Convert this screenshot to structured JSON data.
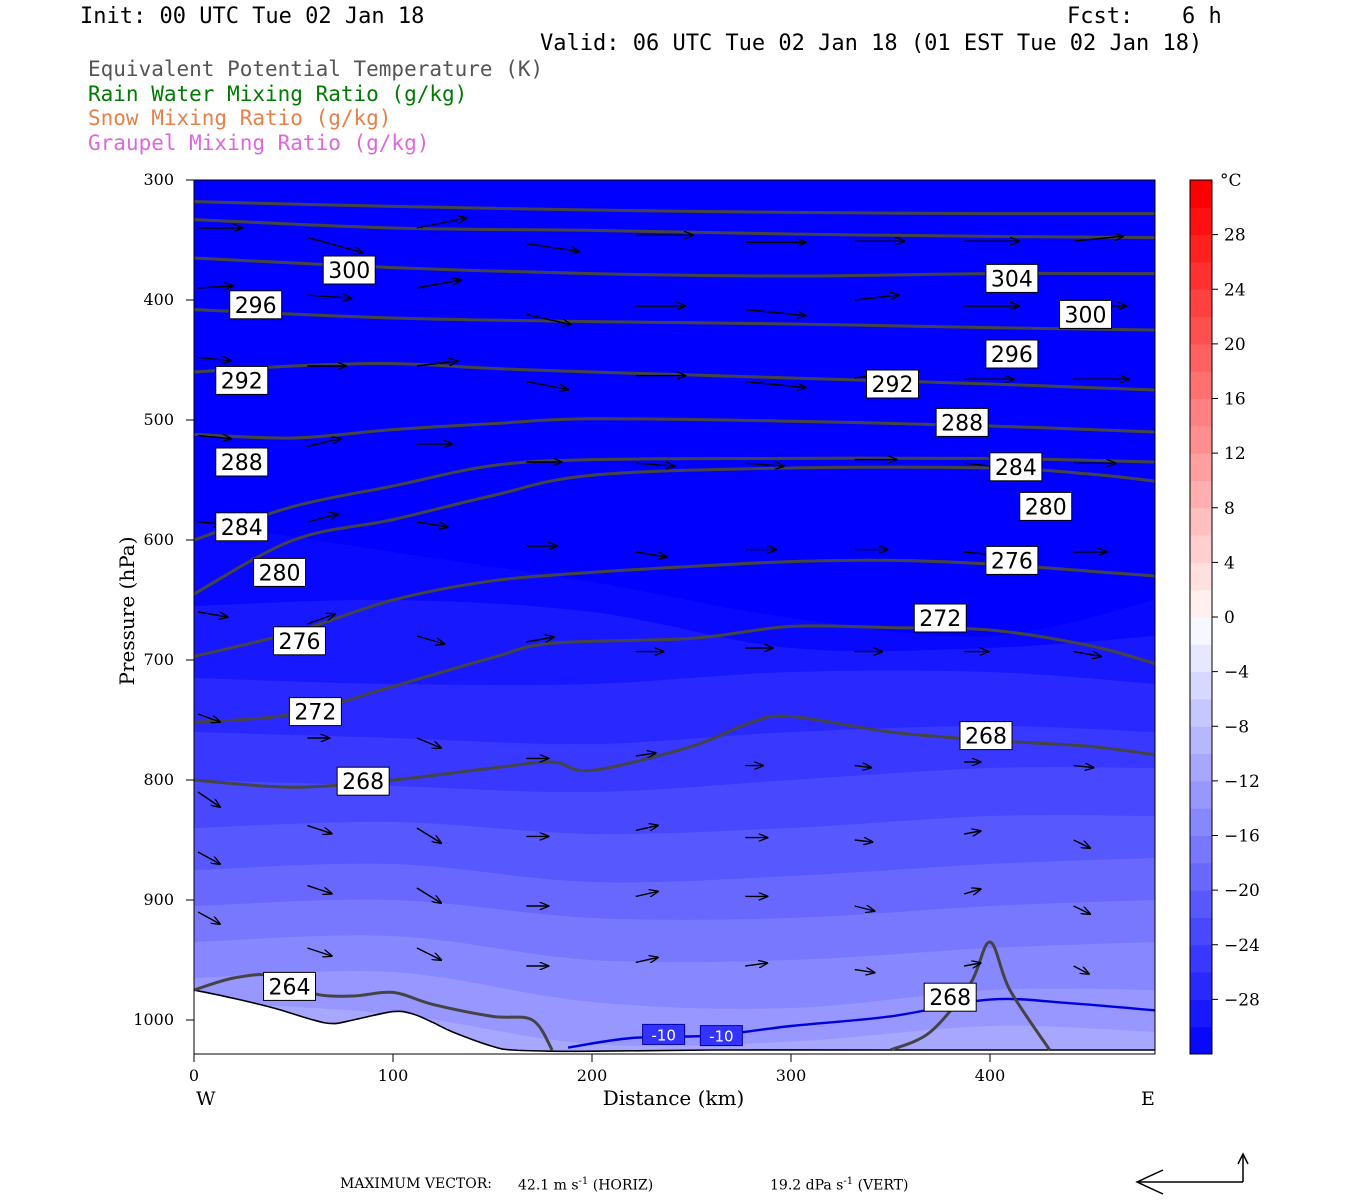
{
  "header": {
    "init": "Init: 00 UTC Tue 02 Jan 18",
    "fcst_label": "Fcst:",
    "fcst_value": "6 h",
    "valid": "Valid: 06 UTC Tue 02 Jan 18 (01 EST Tue 02 Jan 18)"
  },
  "legend": {
    "items": [
      {
        "label": "Equivalent Potential Temperature (K)",
        "color": "#555555"
      },
      {
        "label": "Rain Water Mixing Ratio (g/kg)",
        "color": "#007a00"
      },
      {
        "label": "Snow Mixing Ratio (g/kg)",
        "color": "#e8804a"
      },
      {
        "label": "Graupel Mixing Ratio (g/kg)",
        "color": "#e066e0"
      }
    ]
  },
  "footer": {
    "max_vector_label": "MAXIMUM VECTOR:",
    "horiz_value": "42.1",
    "horiz_unit": "m s",
    "horiz_exp": "-1",
    "horiz_tag": "(HORIZ)",
    "vert_value": "19.2",
    "vert_unit": "dPa s",
    "vert_exp": "-1",
    "vert_tag": "(VERT)"
  },
  "chart_data": {
    "type": "cross-section contour",
    "xlabel": "Distance (km)",
    "ylabel": "Pressure (hPa)",
    "xlim": [
      0,
      483
    ],
    "ylim": [
      1030,
      300
    ],
    "x_ticks": [
      0,
      100,
      200,
      300,
      400
    ],
    "y_ticks": [
      300,
      400,
      500,
      600,
      700,
      800,
      900,
      1000
    ],
    "x_end_labels": {
      "left": "W",
      "right": "E"
    },
    "colorbar": {
      "unit": "°C",
      "levels": [
        -32,
        -30,
        -28,
        -26,
        -24,
        -22,
        -20,
        -18,
        -16,
        -14,
        -12,
        -10,
        -8,
        -6,
        -4,
        -2,
        0,
        2,
        4,
        6,
        8,
        10,
        12,
        14,
        16,
        18,
        20,
        22,
        24,
        26,
        28,
        30,
        32
      ],
      "tick_labels": [
        28,
        24,
        20,
        16,
        12,
        8,
        4,
        0,
        -4,
        -8,
        -12,
        -16,
        -20,
        -24,
        -28
      ]
    },
    "temperature_shading_levels_p_at_x": {
      "x": [
        0,
        100,
        200,
        300,
        400,
        483
      ],
      "isotherms": [
        {
          "t": -12,
          "p": [
            985,
            995,
            1020,
            1018,
            1005,
            1010
          ]
        },
        {
          "t": -14,
          "p": [
            965,
            960,
            985,
            990,
            975,
            975
          ]
        },
        {
          "t": -16,
          "p": [
            935,
            930,
            950,
            950,
            940,
            935
          ]
        },
        {
          "t": -18,
          "p": [
            905,
            900,
            915,
            915,
            905,
            900
          ]
        },
        {
          "t": -20,
          "p": [
            875,
            870,
            885,
            880,
            870,
            865
          ]
        },
        {
          "t": -22,
          "p": [
            840,
            835,
            845,
            840,
            830,
            830
          ]
        },
        {
          "t": -24,
          "p": [
            800,
            805,
            810,
            800,
            790,
            790
          ]
        },
        {
          "t": -26,
          "p": [
            760,
            765,
            770,
            760,
            755,
            760
          ]
        },
        {
          "t": -28,
          "p": [
            715,
            720,
            720,
            710,
            710,
            720
          ]
        },
        {
          "t": -30,
          "p": [
            655,
            650,
            660,
            690,
            690,
            680
          ]
        },
        {
          "t": -32,
          "p": [
            585,
            610,
            635,
            665,
            680,
            650
          ]
        }
      ]
    },
    "theta_e_contours": [
      {
        "value": 264,
        "x": [
          0,
          20,
          40,
          60,
          80,
          100,
          120,
          150,
          170,
          180
        ],
        "p": [
          975,
          965,
          963,
          978,
          980,
          977,
          987,
          997,
          1000,
          1025
        ]
      },
      {
        "value": 268,
        "x": [
          0,
          50,
          100,
          150,
          180,
          200,
          250,
          280,
          300,
          350,
          400,
          450,
          483
        ],
        "p": [
          800,
          806,
          800,
          790,
          785,
          792,
          772,
          752,
          747,
          760,
          767,
          772,
          779
        ]
      },
      {
        "value": 268,
        "x": [
          350,
          370,
          390,
          400,
          410,
          430
        ],
        "p": [
          1025,
          1010,
          970,
          935,
          975,
          1025
        ]
      },
      {
        "value": 272,
        "x": [
          0,
          50,
          100,
          150,
          180,
          250,
          300,
          350,
          400,
          450,
          483
        ],
        "p": [
          752,
          745,
          722,
          698,
          686,
          682,
          672,
          673,
          675,
          688,
          703
        ]
      },
      {
        "value": 276,
        "x": [
          0,
          50,
          100,
          150,
          200,
          250,
          300,
          350,
          400,
          450,
          483
        ],
        "p": [
          697,
          677,
          650,
          634,
          627,
          622,
          618,
          617,
          620,
          626,
          630
        ]
      },
      {
        "value": 280,
        "x": [
          0,
          50,
          100,
          150,
          200,
          300,
          400,
          450,
          483
        ],
        "p": [
          645,
          600,
          583,
          563,
          546,
          540,
          540,
          545,
          551
        ]
      },
      {
        "value": 284,
        "x": [
          0,
          50,
          100,
          150,
          200,
          300,
          400,
          483
        ],
        "p": [
          600,
          572,
          555,
          538,
          533,
          532,
          532,
          535
        ]
      },
      {
        "value": 288,
        "x": [
          0,
          50,
          100,
          150,
          200,
          300,
          400,
          483
        ],
        "p": [
          512,
          515,
          508,
          503,
          499,
          501,
          505,
          510
        ]
      },
      {
        "value": 292,
        "x": [
          0,
          50,
          100,
          150,
          200,
          300,
          400,
          483
        ],
        "p": [
          460,
          455,
          453,
          457,
          460,
          465,
          470,
          475
        ]
      },
      {
        "value": 296,
        "x": [
          0,
          100,
          200,
          300,
          400,
          483
        ],
        "p": [
          408,
          415,
          418,
          420,
          423,
          425
        ]
      },
      {
        "value": 300,
        "x": [
          0,
          100,
          200,
          300,
          400,
          483
        ],
        "p": [
          365,
          373,
          378,
          380,
          378,
          378
        ]
      },
      {
        "value": 304,
        "x": [
          0,
          100,
          200,
          300,
          400,
          483
        ],
        "p": [
          333,
          340,
          342,
          345,
          347,
          348
        ]
      },
      {
        "value": 308,
        "x": [
          0,
          100,
          200,
          300,
          400,
          483
        ],
        "p": [
          318,
          322,
          325,
          327,
          328,
          328
        ]
      }
    ],
    "contour_labels": [
      {
        "text": "300",
        "x": 78,
        "p": 375
      },
      {
        "text": "296",
        "x": 31,
        "p": 404
      },
      {
        "text": "292",
        "x": 24,
        "p": 467
      },
      {
        "text": "288",
        "x": 24,
        "p": 535
      },
      {
        "text": "284",
        "x": 24,
        "p": 589
      },
      {
        "text": "280",
        "x": 43,
        "p": 627
      },
      {
        "text": "276",
        "x": 53,
        "p": 684
      },
      {
        "text": "272",
        "x": 61,
        "p": 743
      },
      {
        "text": "268",
        "x": 85,
        "p": 801
      },
      {
        "text": "264",
        "x": 48,
        "p": 972
      },
      {
        "text": "304",
        "x": 411,
        "p": 382
      },
      {
        "text": "300",
        "x": 448,
        "p": 412
      },
      {
        "text": "296",
        "x": 411,
        "p": 445
      },
      {
        "text": "292",
        "x": 351,
        "p": 470
      },
      {
        "text": "288",
        "x": 386,
        "p": 502
      },
      {
        "text": "284",
        "x": 413,
        "p": 539
      },
      {
        "text": "280",
        "x": 428,
        "p": 572
      },
      {
        "text": "276",
        "x": 411,
        "p": 617
      },
      {
        "text": "272",
        "x": 375,
        "p": 665
      },
      {
        "text": "268",
        "x": 398,
        "p": 763
      },
      {
        "text": "268",
        "x": 380,
        "p": 981
      }
    ],
    "temperature_labels": [
      {
        "text": "-10",
        "x": 236,
        "p": 1012,
        "color": "#0000cc"
      },
      {
        "text": "-10",
        "x": 265,
        "p": 1013,
        "color": "#0000cc"
      }
    ],
    "minus10_isotherm": {
      "x": [
        188,
        220,
        260,
        300,
        350,
        400,
        440,
        483
      ],
      "p": [
        1023,
        1015,
        1013,
        1005,
        997,
        983,
        986,
        992
      ]
    },
    "terrain_p": {
      "x": [
        0,
        20,
        40,
        60,
        70,
        80,
        100,
        110,
        120,
        130,
        150,
        160,
        180,
        200,
        260,
        350,
        420,
        483
      ],
      "p": [
        975,
        982,
        990,
        1000,
        1003,
        1000,
        993,
        995,
        1002,
        1010,
        1022,
        1025,
        1026,
        1026,
        1025,
        1025,
        1025,
        1025
      ]
    },
    "wind_vectors": [
      {
        "x": 0,
        "p": 340,
        "u": 40,
        "w": 0
      },
      {
        "x": 55,
        "p": 348,
        "u": 50,
        "w": -15
      },
      {
        "x": 110,
        "p": 340,
        "u": 45,
        "w": 10
      },
      {
        "x": 165,
        "p": 353,
        "u": 48,
        "w": -8
      },
      {
        "x": 220,
        "p": 346,
        "u": 52,
        "w": 0
      },
      {
        "x": 275,
        "p": 352,
        "u": 55,
        "w": 0
      },
      {
        "x": 330,
        "p": 351,
        "u": 45,
        "w": 0
      },
      {
        "x": 385,
        "p": 351,
        "u": 50,
        "w": 0
      },
      {
        "x": 440,
        "p": 351,
        "u": 45,
        "w": 5
      },
      {
        "x": 0,
        "p": 390,
        "u": 32,
        "w": 2
      },
      {
        "x": 55,
        "p": 396,
        "u": 40,
        "w": -3
      },
      {
        "x": 110,
        "p": 390,
        "u": 40,
        "w": 8
      },
      {
        "x": 165,
        "p": 412,
        "u": 40,
        "w": -10
      },
      {
        "x": 220,
        "p": 405,
        "u": 45,
        "w": 0
      },
      {
        "x": 275,
        "p": 408,
        "u": 55,
        "w": -6
      },
      {
        "x": 330,
        "p": 400,
        "u": 40,
        "w": 5
      },
      {
        "x": 385,
        "p": 405,
        "u": 50,
        "w": 0
      },
      {
        "x": 440,
        "p": 405,
        "u": 48,
        "w": 0
      },
      {
        "x": 0,
        "p": 448,
        "u": 30,
        "w": -3
      },
      {
        "x": 55,
        "p": 455,
        "u": 35,
        "w": 0
      },
      {
        "x": 110,
        "p": 455,
        "u": 37,
        "w": 5
      },
      {
        "x": 165,
        "p": 468,
        "u": 38,
        "w": -8
      },
      {
        "x": 220,
        "p": 463,
        "u": 45,
        "w": 0
      },
      {
        "x": 275,
        "p": 468,
        "u": 55,
        "w": -6
      },
      {
        "x": 330,
        "p": 465,
        "u": 35,
        "w": 5
      },
      {
        "x": 385,
        "p": 466,
        "u": 45,
        "w": 0
      },
      {
        "x": 440,
        "p": 466,
        "u": 50,
        "w": 0
      },
      {
        "x": 0,
        "p": 513,
        "u": 30,
        "w": -3
      },
      {
        "x": 55,
        "p": 522,
        "u": 30,
        "w": 8
      },
      {
        "x": 110,
        "p": 520,
        "u": 32,
        "w": 0
      },
      {
        "x": 165,
        "p": 535,
        "u": 32,
        "w": 0
      },
      {
        "x": 220,
        "p": 536,
        "u": 35,
        "w": -3
      },
      {
        "x": 275,
        "p": 536,
        "u": 35,
        "w": -3
      },
      {
        "x": 330,
        "p": 533,
        "u": 38,
        "w": 0
      },
      {
        "x": 385,
        "p": 536,
        "u": 35,
        "w": -4
      },
      {
        "x": 440,
        "p": 536,
        "u": 38,
        "w": 0
      },
      {
        "x": 0,
        "p": 585,
        "u": 22,
        "w": -2
      },
      {
        "x": 55,
        "p": 585,
        "u": 28,
        "w": 8
      },
      {
        "x": 110,
        "p": 585,
        "u": 28,
        "w": -5
      },
      {
        "x": 165,
        "p": 605,
        "u": 28,
        "w": 0
      },
      {
        "x": 220,
        "p": 610,
        "u": 28,
        "w": -5
      },
      {
        "x": 275,
        "p": 608,
        "u": 28,
        "w": 0
      },
      {
        "x": 330,
        "p": 608,
        "u": 30,
        "w": 0
      },
      {
        "x": 385,
        "p": 610,
        "u": 28,
        "w": -3
      },
      {
        "x": 440,
        "p": 610,
        "u": 30,
        "w": 0
      },
      {
        "x": 0,
        "p": 660,
        "u": 27,
        "w": -5
      },
      {
        "x": 55,
        "p": 670,
        "u": 25,
        "w": 10
      },
      {
        "x": 110,
        "p": 680,
        "u": 25,
        "w": -8
      },
      {
        "x": 165,
        "p": 685,
        "u": 25,
        "w": 5
      },
      {
        "x": 220,
        "p": 693,
        "u": 25,
        "w": 0
      },
      {
        "x": 275,
        "p": 690,
        "u": 25,
        "w": 0
      },
      {
        "x": 330,
        "p": 693,
        "u": 25,
        "w": 0
      },
      {
        "x": 385,
        "p": 693,
        "u": 22,
        "w": 0
      },
      {
        "x": 440,
        "p": 693,
        "u": 25,
        "w": -5
      },
      {
        "x": 0,
        "p": 745,
        "u": 20,
        "w": -8
      },
      {
        "x": 55,
        "p": 765,
        "u": 20,
        "w": 0
      },
      {
        "x": 110,
        "p": 765,
        "u": 22,
        "w": -10
      },
      {
        "x": 165,
        "p": 782,
        "u": 20,
        "w": 0
      },
      {
        "x": 220,
        "p": 780,
        "u": 18,
        "w": 3
      },
      {
        "x": 275,
        "p": 788,
        "u": 16,
        "w": 0
      },
      {
        "x": 330,
        "p": 788,
        "u": 15,
        "w": -2
      },
      {
        "x": 385,
        "p": 785,
        "u": 15,
        "w": 0
      },
      {
        "x": 440,
        "p": 788,
        "u": 18,
        "w": -2
      },
      {
        "x": 0,
        "p": 810,
        "u": 20,
        "w": -15
      },
      {
        "x": 55,
        "p": 838,
        "u": 22,
        "w": -8
      },
      {
        "x": 110,
        "p": 840,
        "u": 22,
        "w": -15
      },
      {
        "x": 165,
        "p": 847,
        "u": 20,
        "w": 0
      },
      {
        "x": 220,
        "p": 842,
        "u": 20,
        "w": 5
      },
      {
        "x": 275,
        "p": 848,
        "u": 20,
        "w": 0
      },
      {
        "x": 330,
        "p": 850,
        "u": 16,
        "w": -2
      },
      {
        "x": 385,
        "p": 845,
        "u": 15,
        "w": 3
      },
      {
        "x": 440,
        "p": 850,
        "u": 15,
        "w": -8
      },
      {
        "x": 0,
        "p": 860,
        "u": 20,
        "w": -12
      },
      {
        "x": 55,
        "p": 888,
        "u": 22,
        "w": -8
      },
      {
        "x": 110,
        "p": 890,
        "u": 22,
        "w": -15
      },
      {
        "x": 165,
        "p": 905,
        "u": 20,
        "w": 0
      },
      {
        "x": 220,
        "p": 897,
        "u": 20,
        "w": 5
      },
      {
        "x": 275,
        "p": 897,
        "u": 20,
        "w": 0
      },
      {
        "x": 330,
        "p": 905,
        "u": 18,
        "w": -5
      },
      {
        "x": 385,
        "p": 895,
        "u": 15,
        "w": 5
      },
      {
        "x": 440,
        "p": 905,
        "u": 15,
        "w": -8
      },
      {
        "x": 0,
        "p": 910,
        "u": 20,
        "w": -12
      },
      {
        "x": 55,
        "p": 940,
        "u": 22,
        "w": -8
      },
      {
        "x": 110,
        "p": 940,
        "u": 22,
        "w": -12
      },
      {
        "x": 165,
        "p": 955,
        "u": 20,
        "w": 0
      },
      {
        "x": 220,
        "p": 952,
        "u": 20,
        "w": 5
      },
      {
        "x": 275,
        "p": 955,
        "u": 20,
        "w": 3
      },
      {
        "x": 330,
        "p": 958,
        "u": 18,
        "w": -3
      },
      {
        "x": 385,
        "p": 955,
        "u": 15,
        "w": 3
      },
      {
        "x": 440,
        "p": 955,
        "u": 14,
        "w": -8
      }
    ]
  }
}
